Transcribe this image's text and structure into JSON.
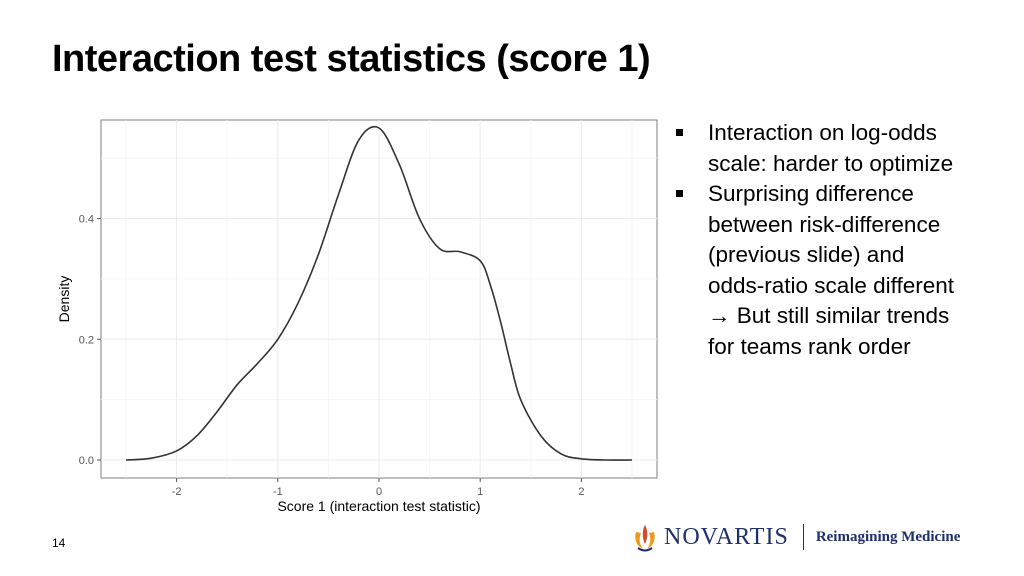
{
  "slide": {
    "title": "Interaction test statistics (score 1)",
    "page_number": "14"
  },
  "bullets": [
    {
      "lines": [
        "Interaction on log-odds",
        "scale: harder to optimize"
      ]
    },
    {
      "lines": [
        "Surprising difference",
        "between risk-difference",
        "(previous slide) and",
        "odds-ratio scale different",
        "→ But still similar trends",
        "for teams rank order"
      ]
    }
  ],
  "branding": {
    "company": "NOVARTIS",
    "tagline": "Reimagining Medicine",
    "colors": {
      "primary": "#1f2f6a",
      "flame_orange": "#ec9a1e",
      "flame_red": "#d5492b"
    }
  },
  "chart_data": {
    "type": "line",
    "title": "",
    "xlabel": "Score 1 (interaction test statistic)",
    "ylabel": "Density",
    "xlim": [
      -2.5,
      2.5
    ],
    "ylim": [
      0,
      0.55
    ],
    "x_ticks": [
      -2,
      -1,
      0,
      1,
      2
    ],
    "x_tick_labels": [
      "-2",
      "-1",
      "0",
      "1",
      "2"
    ],
    "y_ticks": [
      0.0,
      0.2,
      0.4
    ],
    "y_tick_labels": [
      "0.0",
      "0.2",
      "0.4"
    ],
    "grid": true,
    "legend": "none",
    "series": [
      {
        "x": [
          -2.5,
          -2.25,
          -2.0,
          -1.8,
          -1.6,
          -1.4,
          -1.2,
          -1.0,
          -0.8,
          -0.6,
          -0.4,
          -0.2,
          0.0,
          0.2,
          0.4,
          0.6,
          0.8,
          1.0,
          1.1,
          1.2,
          1.3,
          1.4,
          1.6,
          1.8,
          2.0,
          2.25,
          2.5
        ],
        "y": [
          0.0,
          0.003,
          0.015,
          0.04,
          0.08,
          0.125,
          0.16,
          0.2,
          0.26,
          0.34,
          0.44,
          0.53,
          0.55,
          0.49,
          0.4,
          0.35,
          0.345,
          0.33,
          0.29,
          0.23,
          0.16,
          0.1,
          0.04,
          0.01,
          0.002,
          0.0,
          0.0
        ]
      }
    ]
  }
}
